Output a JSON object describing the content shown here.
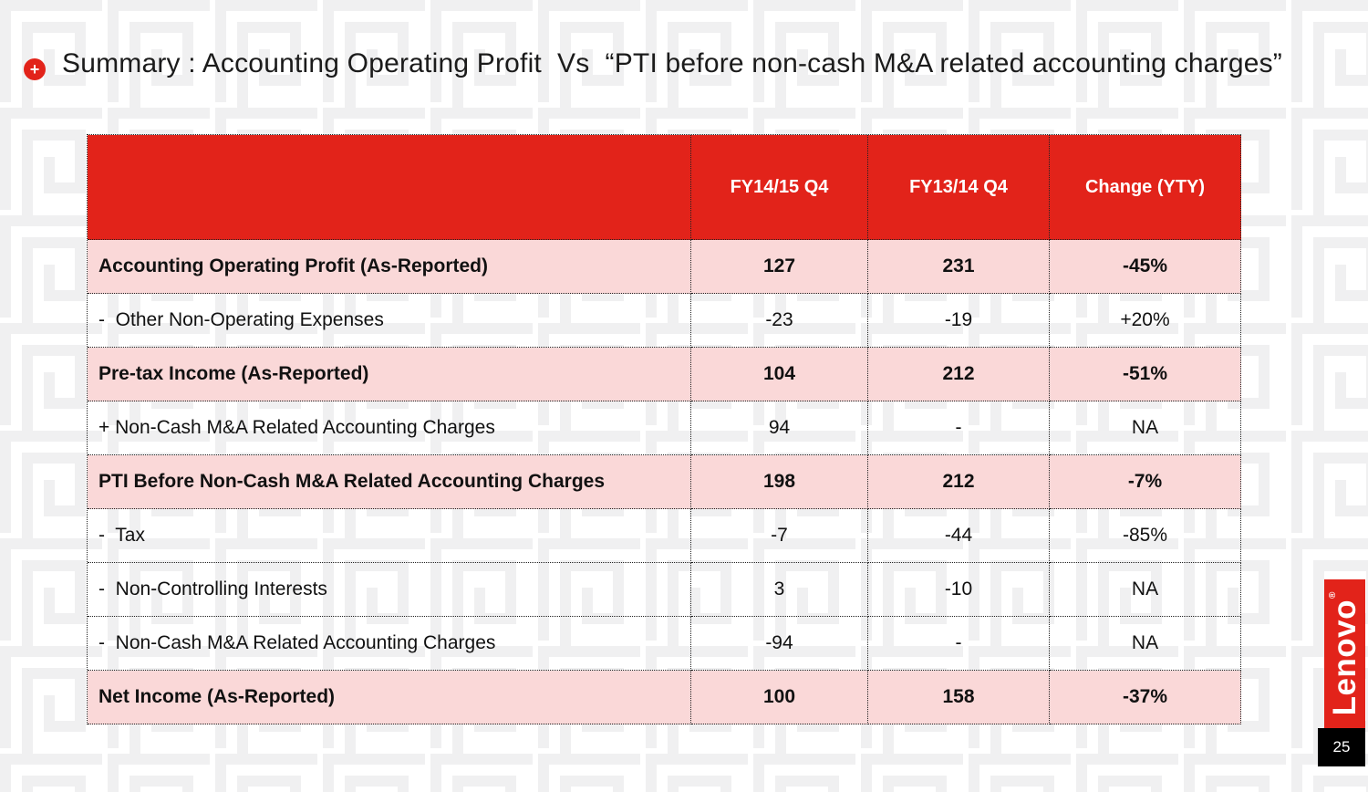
{
  "slide": {
    "title": "Summary : Accounting Operating Profit  Vs  “PTI before non-cash M&A related accounting charges”",
    "page_number": "25",
    "logo_text": "Lenovo",
    "logo_reg_mark": "®"
  },
  "icons": {
    "plus_icon": "+"
  },
  "colors": {
    "brand_red": "#E2231A",
    "row_highlight_pink": "#FAD8D8",
    "page_badge_black": "#000000",
    "pattern_gray": "#F0F0F1"
  },
  "table": {
    "columns": [
      "",
      "FY14/15 Q4",
      "FY13/14 Q4",
      "Change (YTY)"
    ],
    "rows": [
      {
        "label": "Accounting Operating Profit (As-Reported)",
        "bold": true,
        "highlight": true,
        "values": [
          "127",
          "231",
          "-45%"
        ]
      },
      {
        "label": "-  Other Non-Operating Expenses",
        "bold": false,
        "highlight": false,
        "values": [
          "-23",
          "-19",
          "+20%"
        ]
      },
      {
        "label": "Pre-tax Income (As-Reported)",
        "bold": true,
        "highlight": true,
        "values": [
          "104",
          "212",
          "-51%"
        ]
      },
      {
        "label": "+ Non-Cash M&A Related Accounting Charges",
        "bold": false,
        "highlight": false,
        "values": [
          "94",
          "-",
          "NA"
        ]
      },
      {
        "label": "PTI Before Non-Cash M&A Related Accounting Charges",
        "bold": true,
        "highlight": true,
        "values": [
          "198",
          "212",
          "-7%"
        ]
      },
      {
        "label": "-  Tax",
        "bold": false,
        "highlight": false,
        "values": [
          "-7",
          "-44",
          "-85%"
        ]
      },
      {
        "label": "-  Non-Controlling Interests",
        "bold": false,
        "highlight": false,
        "values": [
          "3",
          "-10",
          "NA"
        ]
      },
      {
        "label": "-  Non-Cash M&A Related Accounting Charges",
        "bold": false,
        "highlight": false,
        "values": [
          "-94",
          "-",
          "NA"
        ]
      },
      {
        "label": "Net Income (As-Reported)",
        "bold": true,
        "highlight": true,
        "values": [
          "100",
          "158",
          "-37%"
        ]
      }
    ]
  }
}
